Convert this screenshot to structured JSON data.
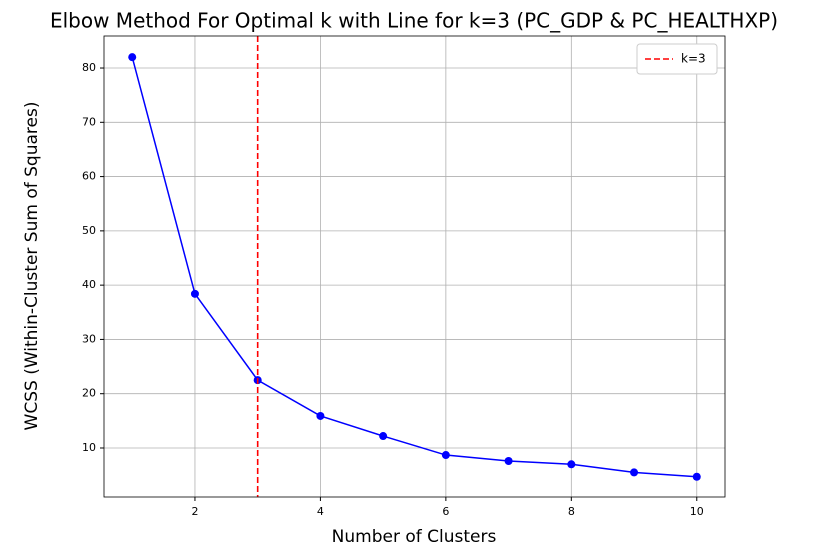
{
  "chart_data": {
    "type": "line",
    "title": "Elbow Method For Optimal k with Line for k=3 (PC_GDP & PC_HEALTHXP)",
    "x_label": "Number of Clusters",
    "y_label": "WCSS (Within-Cluster Sum of Squares)",
    "x": [
      1,
      2,
      3,
      4,
      5,
      6,
      7,
      8,
      9,
      10
    ],
    "series": [
      {
        "color": "#0000ff",
        "values": [
          82.0,
          38.4,
          22.5,
          15.9,
          12.2,
          8.7,
          7.6,
          7.0,
          5.5,
          4.7
        ]
      }
    ],
    "vlines": [
      {
        "x": 3,
        "name": "k=3",
        "color": "#ff0000"
      }
    ],
    "xlim": [
      0.55,
      10.45
    ],
    "ylim": [
      0.97,
      85.9
    ],
    "xticks": [
      2,
      4,
      6,
      8,
      10
    ],
    "yticks": [
      10,
      20,
      30,
      40,
      50,
      60,
      70,
      80
    ],
    "grid": true,
    "legend": "upper right"
  }
}
